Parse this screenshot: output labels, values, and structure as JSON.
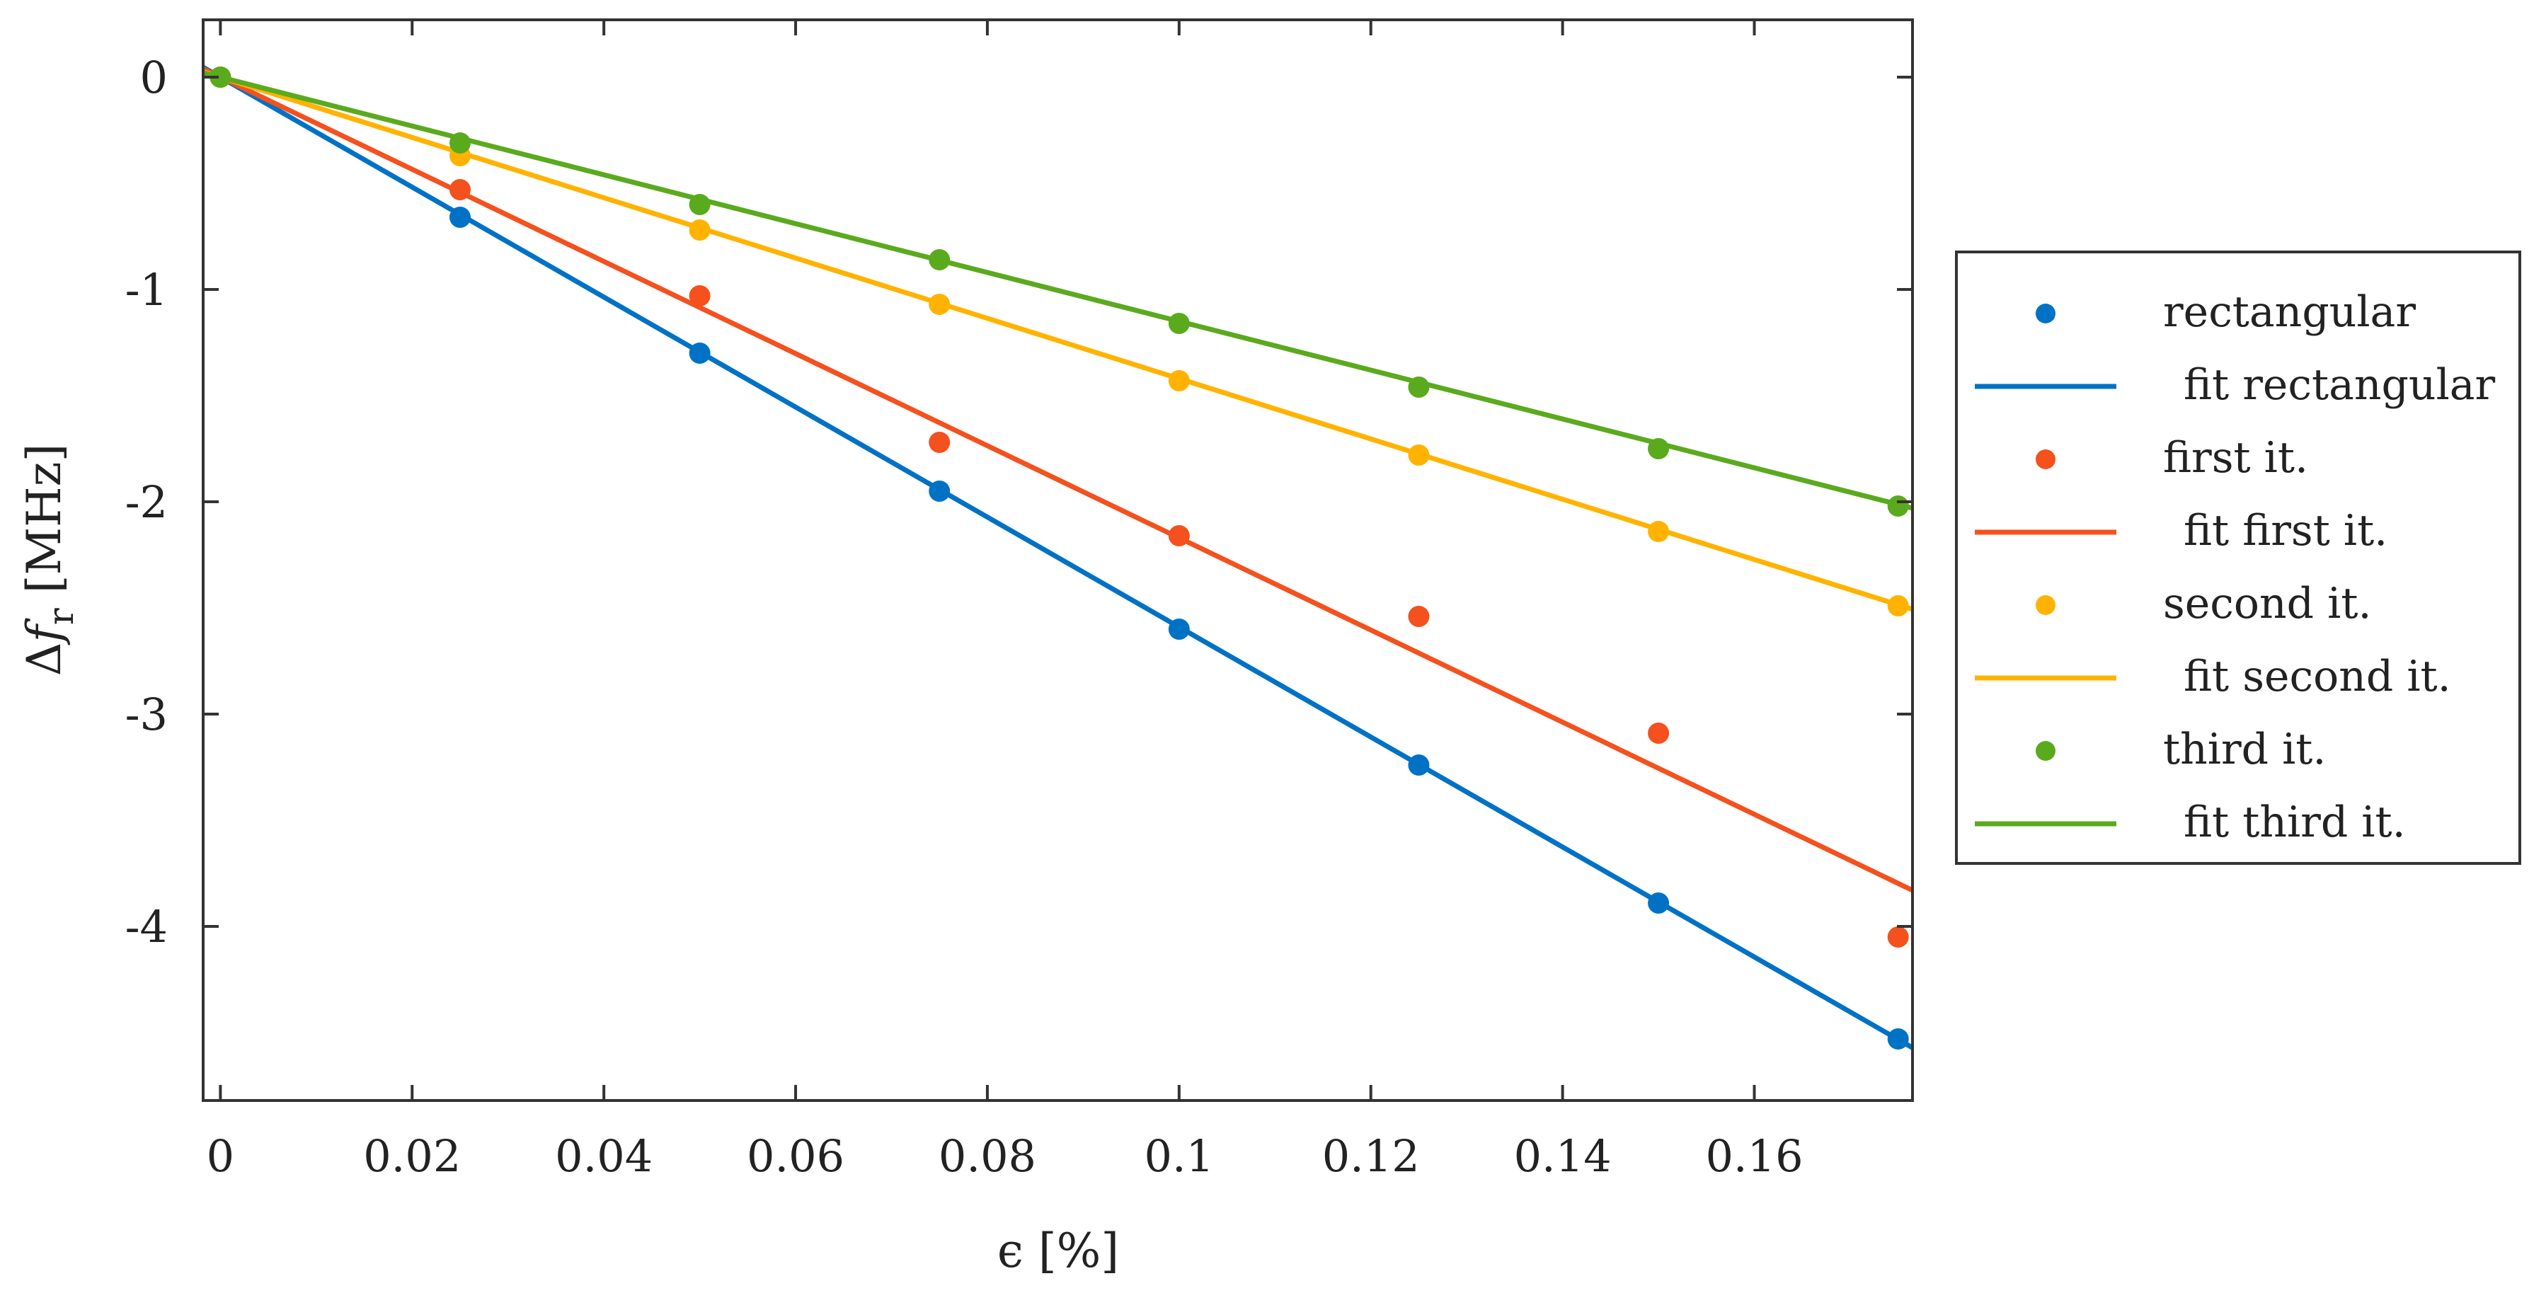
{
  "chart_data": {
    "type": "scatter",
    "xlabel": "ϵ [%]",
    "ylabel": "Δf_r [MHz]",
    "ylabel_parts": {
      "delta": "Δ",
      "f": "f",
      "sub": "r",
      "unit": " [MHz]"
    },
    "xlim": [
      -0.0018,
      0.1765
    ],
    "ylim": [
      -4.82,
      0.27
    ],
    "xticks": [
      0,
      0.02,
      0.04,
      0.06,
      0.08,
      0.1,
      0.12,
      0.14,
      0.16
    ],
    "xtick_labels": [
      "0",
      "0.02",
      "0.04",
      "0.06",
      "0.08",
      "0.1",
      "0.12",
      "0.14",
      "0.16"
    ],
    "yticks": [
      0,
      -1,
      -2,
      -3,
      -4
    ],
    "ytick_labels": [
      "0",
      "-1",
      "-2",
      "-3",
      "-4"
    ],
    "grid": false,
    "legend_position": "outside-right",
    "x": [
      0,
      0.025,
      0.05,
      0.075,
      0.1,
      0.125,
      0.15,
      0.175
    ],
    "series": [
      {
        "name": "rectangular",
        "kind": "points",
        "color": "#0072C6",
        "values": [
          0,
          -0.66,
          -1.3,
          -1.95,
          -2.6,
          -3.24,
          -3.89,
          -4.53
        ]
      },
      {
        "name": "fit rectangular",
        "kind": "line",
        "color": "#0072C6",
        "slope": -25.9
      },
      {
        "name": "first it.",
        "kind": "points",
        "color": "#F4511E",
        "values": [
          0,
          -0.53,
          -1.03,
          -1.72,
          -2.16,
          -2.54,
          -3.09,
          -4.05
        ]
      },
      {
        "name": "fit first it.",
        "kind": "line",
        "color": "#F4511E",
        "slope": -21.7
      },
      {
        "name": "second it.",
        "kind": "points",
        "color": "#FFB300",
        "values": [
          0,
          -0.37,
          -0.72,
          -1.07,
          -1.43,
          -1.78,
          -2.14,
          -2.49
        ]
      },
      {
        "name": "fit second it.",
        "kind": "line",
        "color": "#FFB300",
        "slope": -14.2
      },
      {
        "name": "third it.",
        "kind": "points",
        "color": "#5AAA1E",
        "values": [
          0,
          -0.31,
          -0.6,
          -0.86,
          -1.16,
          -1.46,
          -1.75,
          -2.02
        ]
      },
      {
        "name": "fit third it.",
        "kind": "line",
        "color": "#5AAA1E",
        "slope": -11.5
      }
    ]
  }
}
